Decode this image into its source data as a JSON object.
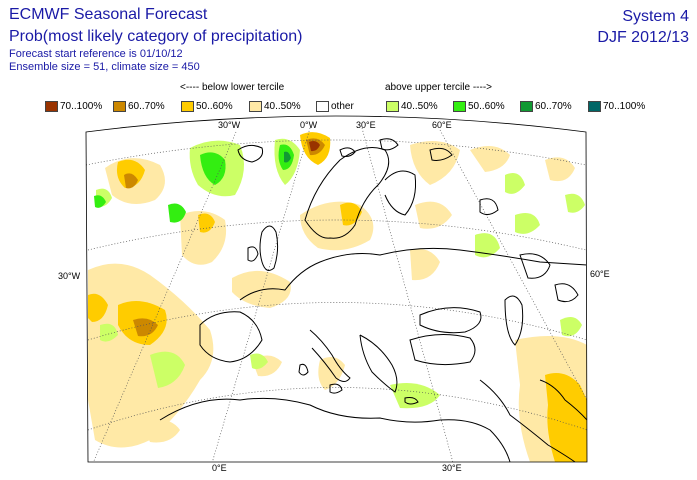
{
  "header": {
    "title": "ECMWF Seasonal Forecast",
    "subtitle": "Prob(most likely category of precipitation)",
    "forecast_start": "Forecast start reference is 01/10/12",
    "ensemble": "Ensemble size = 51, climate size = 450",
    "system": "System 4",
    "season": "DJF 2012/13"
  },
  "legend": {
    "below_label": "<---- below lower tercile",
    "above_label": "above upper tercile ---->",
    "items": [
      {
        "label": "70..100%",
        "color": "#993300"
      },
      {
        "label": "60..70%",
        "color": "#cc8800"
      },
      {
        "label": "50..60%",
        "color": "#ffcc00"
      },
      {
        "label": "40..50%",
        "color": "#ffe9a6"
      },
      {
        "label": "other",
        "color": "#ffffff"
      },
      {
        "label": "40..50%",
        "color": "#ccff66"
      },
      {
        "label": "50..60%",
        "color": "#33ee11"
      },
      {
        "label": "60..70%",
        "color": "#119933"
      },
      {
        "label": "70..100%",
        "color": "#006666"
      }
    ]
  },
  "map": {
    "top_labels": [
      "30°W",
      "0°W",
      "30°E",
      "60°E"
    ],
    "left_labels": [
      "30°W"
    ],
    "right_labels": [
      "60°E"
    ],
    "bottom_labels": [
      "0°E",
      "30°E"
    ]
  }
}
